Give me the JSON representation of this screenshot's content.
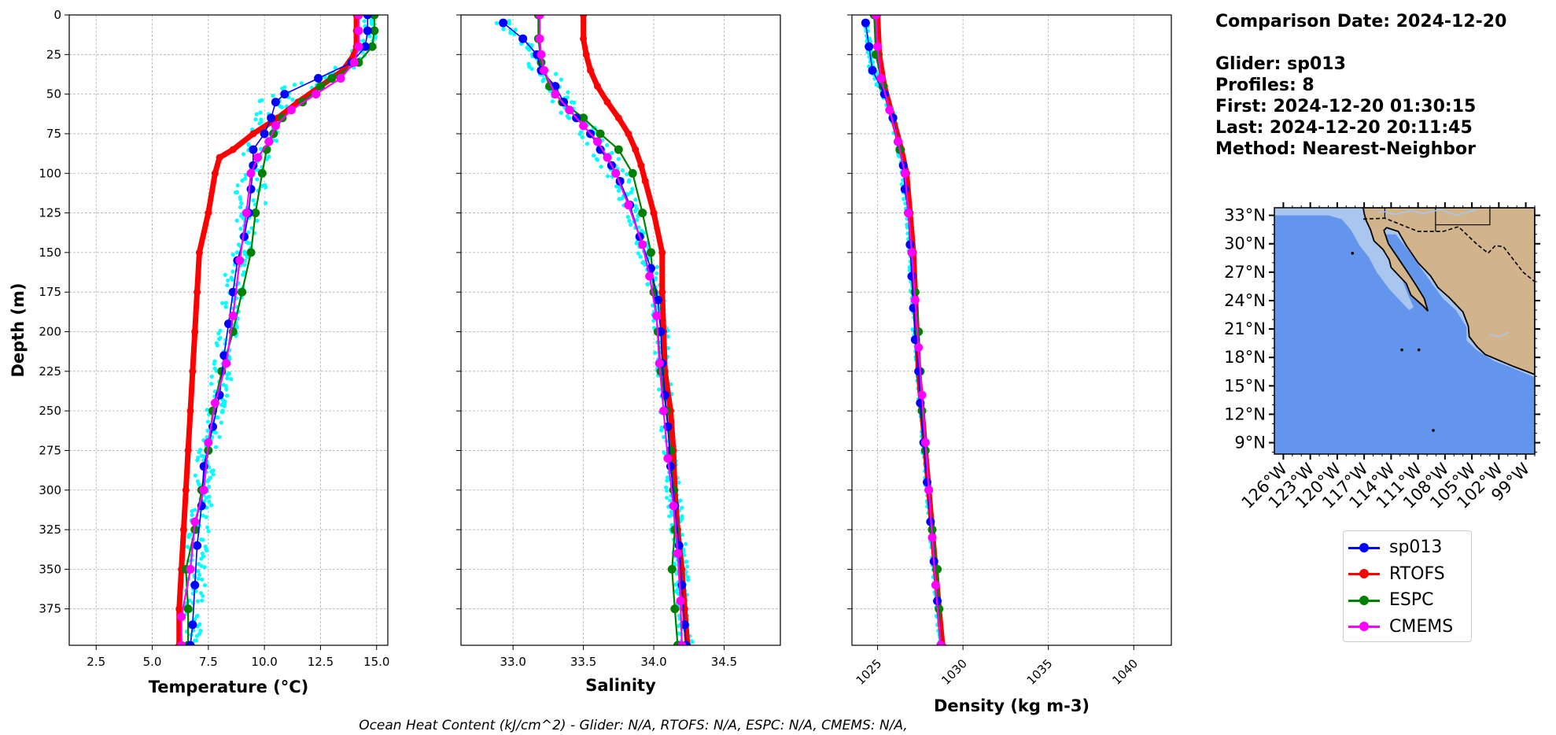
{
  "info": {
    "comparison_date": "Comparison Date: 2024-12-20",
    "glider": "Glider: sp013",
    "profiles": "Profiles: 8",
    "first": "First: 2024-12-20 01:30:15",
    "last": "Last: 2024-12-20 20:11:45",
    "method": "Method: Nearest-Neighbor"
  },
  "footer": "Ocean Heat Content (kJ/cm^2) - Glider: N/A,  RTOFS: N/A,  ESPC: N/A,  CMEMS: N/A,",
  "colors": {
    "sp013": "#0000ff",
    "RTOFS": "#ff0000",
    "ESPC": "#008000",
    "CMEMS": "#ff00ff",
    "glider_raw": "#00ffff",
    "ocean": "#6495ed",
    "shelf": "#a9c6ee",
    "land": "#d2b48c",
    "grid": "#b0b0b0"
  },
  "legend": [
    {
      "name": "sp013",
      "color": "#0000ff"
    },
    {
      "name": "RTOFS",
      "color": "#ff0000"
    },
    {
      "name": "ESPC",
      "color": "#008000"
    },
    {
      "name": "CMEMS",
      "color": "#ff00ff"
    }
  ],
  "chart_data": [
    {
      "type": "line",
      "xlabel": "Temperature (°C)",
      "ylabel": "Depth (m)",
      "xlim": [
        1.3,
        15.5
      ],
      "ylim": [
        398,
        0
      ],
      "xticks": [
        "2.5",
        "5.0",
        "7.5",
        "10.0",
        "12.5",
        "15.0"
      ],
      "xtick_values": [
        2.5,
        5.0,
        7.5,
        10.0,
        12.5,
        15.0
      ],
      "yticks": [
        "0",
        "25",
        "50",
        "75",
        "100",
        "125",
        "150",
        "175",
        "200",
        "225",
        "250",
        "275",
        "300",
        "325",
        "350",
        "375"
      ],
      "ytick_values": [
        0,
        25,
        50,
        75,
        100,
        125,
        150,
        175,
        200,
        225,
        250,
        275,
        300,
        325,
        350,
        375
      ],
      "grid": true,
      "series": [
        {
          "name": "sp013",
          "depth": [
            0,
            10,
            20,
            30,
            40,
            50,
            55,
            65,
            75,
            85,
            95,
            110,
            125,
            140,
            155,
            175,
            195,
            215,
            240,
            260,
            285,
            310,
            335,
            360,
            385,
            398
          ],
          "values": [
            14.6,
            14.6,
            14.5,
            13.9,
            12.4,
            10.9,
            10.5,
            10.3,
            10.0,
            9.5,
            9.5,
            9.4,
            9.3,
            9.1,
            8.8,
            8.6,
            8.4,
            8.2,
            8.0,
            7.7,
            7.3,
            7.2,
            7.0,
            6.9,
            6.8,
            6.7
          ]
        },
        {
          "name": "RTOFS",
          "depth": [
            0,
            10,
            20,
            25,
            35,
            45,
            55,
            65,
            75,
            85,
            90,
            100,
            125,
            150,
            175,
            200,
            225,
            250,
            275,
            300,
            325,
            350,
            375,
            398
          ],
          "values": [
            14.1,
            14.1,
            14.1,
            14.0,
            13.5,
            12.5,
            11.5,
            10.6,
            9.5,
            8.6,
            8.0,
            7.8,
            7.5,
            7.1,
            7.0,
            6.9,
            6.8,
            6.7,
            6.6,
            6.5,
            6.4,
            6.3,
            6.2,
            6.2
          ]
        },
        {
          "name": "ESPC",
          "depth": [
            0,
            10,
            20,
            30,
            40,
            45,
            55,
            65,
            75,
            85,
            100,
            125,
            150,
            175,
            200,
            225,
            250,
            275,
            300,
            325,
            350,
            375,
            398
          ],
          "values": [
            14.9,
            14.9,
            14.8,
            14.2,
            13.0,
            12.5,
            11.7,
            10.8,
            10.4,
            10.1,
            9.9,
            9.6,
            9.4,
            9.0,
            8.6,
            8.1,
            7.7,
            7.5,
            7.2,
            6.9,
            6.5,
            6.6,
            6.6
          ]
        },
        {
          "name": "CMEMS",
          "depth": [
            0,
            10,
            20,
            30,
            40,
            50,
            60,
            70,
            80,
            90,
            100,
            125,
            155,
            190,
            220,
            245,
            270,
            300,
            320,
            350,
            380,
            398
          ],
          "values": [
            14.2,
            14.2,
            14.2,
            14.0,
            13.4,
            12.3,
            11.2,
            10.5,
            10.2,
            9.7,
            9.4,
            9.2,
            8.9,
            8.6,
            8.3,
            7.8,
            7.5,
            7.3,
            6.9,
            6.7,
            6.3,
            6.3
          ]
        }
      ]
    },
    {
      "type": "line",
      "xlabel": "Salinity",
      "ylabel": "",
      "xlim": [
        32.63,
        34.9
      ],
      "ylim": [
        398,
        0
      ],
      "xticks": [
        "33.0",
        "33.5",
        "34.0",
        "34.5"
      ],
      "xtick_values": [
        33.0,
        33.5,
        34.0,
        34.5
      ],
      "grid": true,
      "series": [
        {
          "name": "sp013",
          "depth": [
            5,
            15,
            25,
            35,
            45,
            55,
            65,
            75,
            85,
            95,
            105,
            120,
            140,
            160,
            180,
            200,
            220,
            240,
            260,
            285,
            310,
            335,
            360,
            385,
            398
          ],
          "values": [
            32.93,
            33.07,
            33.17,
            33.2,
            33.3,
            33.36,
            33.45,
            33.55,
            33.62,
            33.7,
            33.76,
            33.83,
            33.9,
            33.98,
            34.03,
            34.05,
            34.06,
            34.08,
            34.1,
            34.12,
            34.15,
            34.18,
            34.2,
            34.22,
            34.23
          ]
        },
        {
          "name": "RTOFS",
          "depth": [
            0,
            15,
            25,
            35,
            45,
            55,
            65,
            75,
            85,
            95,
            105,
            125,
            150,
            175,
            200,
            225,
            250,
            275,
            300,
            325,
            350,
            375,
            398
          ],
          "values": [
            33.5,
            33.5,
            33.52,
            33.55,
            33.6,
            33.67,
            33.75,
            33.82,
            33.87,
            33.91,
            33.94,
            34.0,
            34.06,
            34.06,
            34.07,
            34.08,
            34.12,
            34.14,
            34.15,
            34.17,
            34.2,
            34.22,
            34.24
          ]
        },
        {
          "name": "ESPC",
          "depth": [
            0,
            15,
            30,
            45,
            55,
            65,
            75,
            85,
            100,
            125,
            150,
            175,
            200,
            225,
            250,
            275,
            300,
            325,
            350,
            375,
            398
          ],
          "values": [
            33.18,
            33.18,
            33.2,
            33.26,
            33.35,
            33.5,
            33.62,
            33.75,
            33.85,
            33.92,
            33.98,
            34.0,
            34.03,
            34.05,
            34.09,
            34.12,
            34.14,
            34.15,
            34.13,
            34.15,
            34.17
          ]
        },
        {
          "name": "CMEMS",
          "depth": [
            0,
            15,
            25,
            35,
            50,
            60,
            70,
            80,
            90,
            100,
            120,
            145,
            165,
            190,
            220,
            250,
            280,
            310,
            340,
            370,
            398
          ],
          "values": [
            33.19,
            33.19,
            33.2,
            33.22,
            33.3,
            33.4,
            33.5,
            33.6,
            33.67,
            33.73,
            33.82,
            33.92,
            33.97,
            34.02,
            34.04,
            34.07,
            34.1,
            34.14,
            34.17,
            34.19,
            34.2
          ]
        }
      ]
    },
    {
      "type": "line",
      "xlabel": "Density (kg m-3)",
      "ylabel": "",
      "xlim": [
        1023.5,
        1042.2
      ],
      "ylim": [
        398,
        0
      ],
      "xticks": [
        "1025",
        "1030",
        "1035",
        "1040"
      ],
      "xtick_values": [
        1025,
        1030,
        1035,
        1040
      ],
      "grid": true,
      "series": [
        {
          "name": "sp013",
          "depth": [
            5,
            20,
            35,
            50,
            65,
            80,
            95,
            110,
            125,
            145,
            165,
            185,
            205,
            225,
            245,
            270,
            295,
            320,
            345,
            370,
            398
          ],
          "values": [
            1024.3,
            1024.5,
            1024.7,
            1025.4,
            1025.9,
            1026.2,
            1026.5,
            1026.6,
            1026.8,
            1026.9,
            1027.0,
            1027.1,
            1027.2,
            1027.4,
            1027.5,
            1027.7,
            1027.9,
            1028.1,
            1028.3,
            1028.5,
            1028.7
          ]
        },
        {
          "name": "RTOFS",
          "depth": [
            0,
            25,
            45,
            65,
            85,
            100,
            125,
            150,
            175,
            200,
            225,
            250,
            275,
            300,
            325,
            350,
            375,
            398
          ],
          "values": [
            1025.0,
            1025.1,
            1025.4,
            1025.9,
            1026.4,
            1026.7,
            1026.9,
            1027.1,
            1027.2,
            1027.3,
            1027.4,
            1027.6,
            1027.8,
            1028.0,
            1028.2,
            1028.4,
            1028.6,
            1028.8
          ]
        },
        {
          "name": "ESPC",
          "depth": [
            0,
            25,
            45,
            65,
            85,
            100,
            125,
            150,
            175,
            200,
            225,
            250,
            275,
            300,
            325,
            350,
            375,
            398
          ],
          "values": [
            1024.8,
            1024.9,
            1025.3,
            1025.9,
            1026.3,
            1026.6,
            1026.8,
            1027.0,
            1027.2,
            1027.4,
            1027.5,
            1027.6,
            1027.8,
            1028.0,
            1028.2,
            1028.5,
            1028.6,
            1028.7
          ]
        },
        {
          "name": "CMEMS",
          "depth": [
            0,
            20,
            40,
            60,
            80,
            100,
            125,
            150,
            180,
            210,
            240,
            270,
            300,
            330,
            360,
            398
          ],
          "values": [
            1024.9,
            1025.0,
            1025.2,
            1025.7,
            1026.2,
            1026.6,
            1026.8,
            1027.0,
            1027.2,
            1027.4,
            1027.6,
            1027.8,
            1028.0,
            1028.2,
            1028.4,
            1028.7
          ]
        }
      ]
    }
  ],
  "map": {
    "lon_ticks": [
      "126°W",
      "123°W",
      "120°W",
      "117°W",
      "114°W",
      "111°W",
      "108°W",
      "105°W",
      "102°W",
      "99°W"
    ],
    "lon_values": [
      -126,
      -123,
      -120,
      -117,
      -114,
      -111,
      -108,
      -105,
      -102,
      -99
    ],
    "lat_ticks": [
      "33°N",
      "30°N",
      "27°N",
      "24°N",
      "21°N",
      "18°N",
      "15°N",
      "12°N",
      "9°N"
    ],
    "lat_values": [
      33,
      30,
      27,
      24,
      21,
      18,
      15,
      12,
      9
    ],
    "lon_range": [
      -127,
      -98
    ],
    "lat_range": [
      7.8,
      33.8
    ]
  }
}
